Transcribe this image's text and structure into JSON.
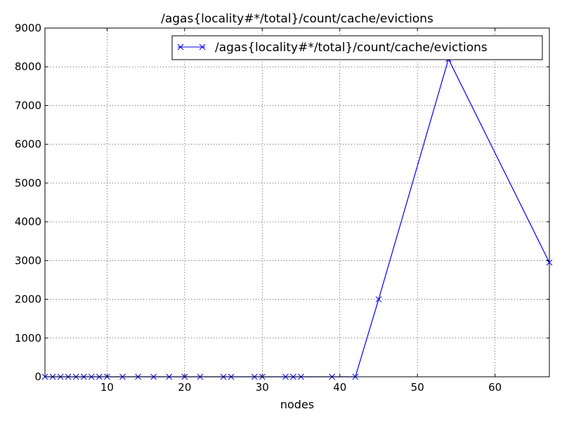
{
  "chart_data": {
    "type": "line",
    "title": "/agas{locality#*/total}/count/cache/evictions",
    "xlabel": "nodes",
    "ylabel": "",
    "xlim": [
      2,
      67
    ],
    "ylim": [
      0,
      9000
    ],
    "x_ticks": [
      10,
      20,
      30,
      40,
      50,
      60
    ],
    "y_ticks": [
      0,
      1000,
      2000,
      3000,
      4000,
      5000,
      6000,
      7000,
      8000,
      9000
    ],
    "x_tick_labels": [
      "10",
      "20",
      "30",
      "40",
      "50",
      "60"
    ],
    "y_tick_labels": [
      "0",
      "1000",
      "2000",
      "3000",
      "4000",
      "5000",
      "6000",
      "7000",
      "8000",
      "9000"
    ],
    "grid": true,
    "legend_position": "top-right",
    "series": [
      {
        "name": "/agas{locality#*/total}/count/cache/evictions",
        "color": "#0000ff",
        "marker": "x",
        "x": [
          2,
          3,
          4,
          5,
          6,
          7,
          8,
          9,
          10,
          12,
          14,
          16,
          18,
          20,
          22,
          25,
          26,
          29,
          30,
          33,
          34,
          35,
          39,
          42,
          45,
          54,
          67
        ],
        "y": [
          0,
          0,
          0,
          0,
          0,
          0,
          0,
          0,
          0,
          0,
          0,
          0,
          0,
          0,
          0,
          0,
          0,
          0,
          0,
          0,
          0,
          0,
          0,
          0,
          2000,
          8200,
          2950
        ]
      }
    ]
  }
}
